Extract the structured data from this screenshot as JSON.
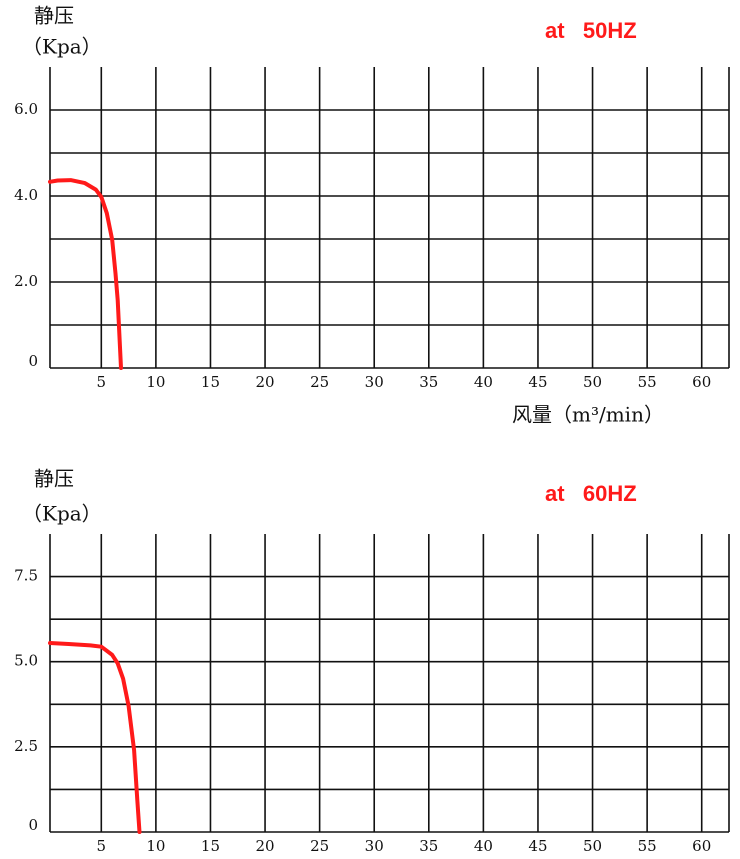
{
  "chart_data": [
    {
      "type": "line",
      "title": "at   50HZ",
      "y_label": [
        "静压",
        "（Kpa）"
      ],
      "x_label": "风量（m³/min）",
      "xlim": [
        0.3,
        62.5
      ],
      "xticks": [
        5,
        10,
        15,
        20,
        25,
        30,
        35,
        40,
        45,
        50,
        55,
        60
      ],
      "ylim": [
        0,
        7
      ],
      "yticks": [
        0,
        {
          "value": 2,
          "label": "2.0"
        },
        {
          "value": 4,
          "label": "4.0"
        },
        {
          "value": 6,
          "label": "6.0"
        }
      ],
      "minor_yticks": [
        1,
        3,
        5
      ],
      "grid": true,
      "x": [
        0.3,
        1,
        2.2,
        3.5,
        4.5,
        5,
        5.5,
        6,
        6.3,
        6.5,
        6.8
      ],
      "series": [
        {
          "color": "#ff1a1a",
          "values": [
            4.33,
            4.36,
            4.37,
            4.3,
            4.15,
            3.98,
            3.6,
            2.98,
            2.2,
            1.58,
            0
          ]
        }
      ]
    },
    {
      "type": "line",
      "title": "at   60HZ",
      "y_label": [
        "静压",
        "（Kpa）"
      ],
      "xlim": [
        0.3,
        62.5
      ],
      "xticks": [
        5,
        10,
        15,
        20,
        25,
        30,
        35,
        40,
        45,
        50,
        55,
        60
      ],
      "ylim": [
        0,
        8.75
      ],
      "yticks": [
        0,
        {
          "value": 2.5,
          "label": "2.5"
        },
        {
          "value": 5,
          "label": "5.0"
        },
        {
          "value": 7.5,
          "label": "7.5"
        }
      ],
      "minor_yticks": [
        1.25,
        3.75,
        6.25
      ],
      "grid": true,
      "x": [
        0.3,
        2,
        4,
        5,
        6,
        6.5,
        7,
        7.5,
        8,
        8.3,
        8.5
      ],
      "series": [
        {
          "color": "#ff1a1a",
          "values": [
            5.55,
            5.52,
            5.48,
            5.44,
            5.2,
            4.95,
            4.5,
            3.7,
            2.4,
            0.94,
            0
          ]
        }
      ]
    }
  ]
}
